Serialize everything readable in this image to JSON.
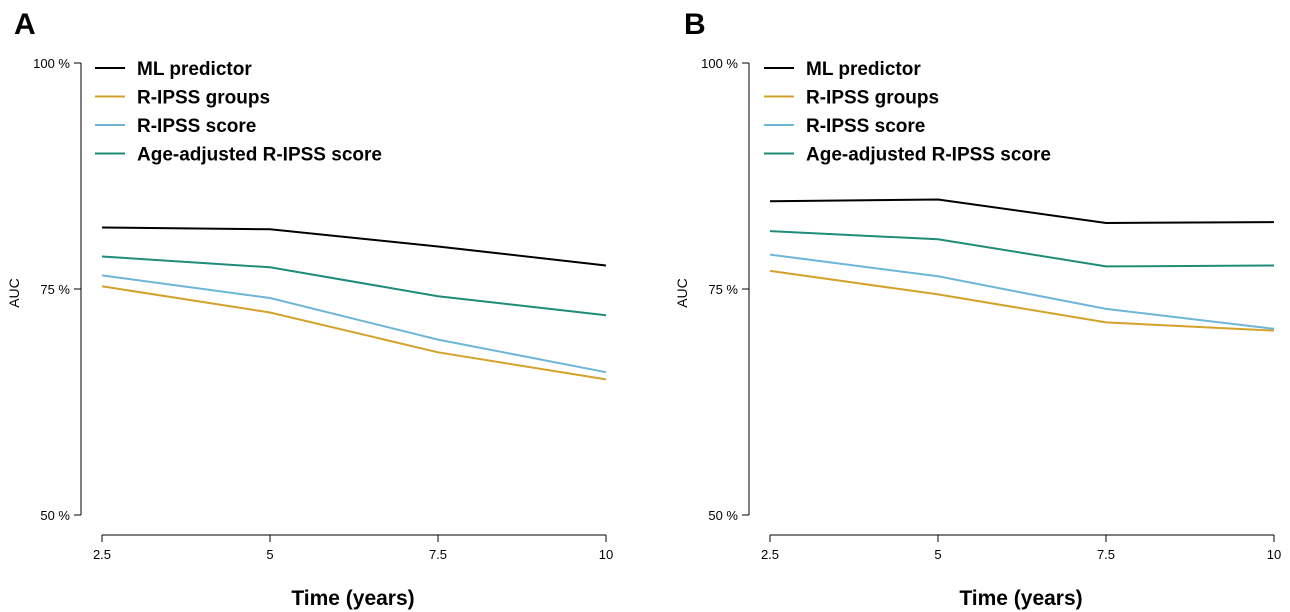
{
  "chart_data": [
    {
      "type": "line",
      "panel_label": "A",
      "xlabel": "Time (years)",
      "ylabel": "AUC",
      "x": [
        2.5,
        5,
        7.5,
        10
      ],
      "x_tick_labels": [
        "2.5",
        "5",
        "7.5",
        "10"
      ],
      "ylim": [
        50,
        100
      ],
      "y_ticks": [
        50,
        75,
        100
      ],
      "y_tick_labels": [
        "50 %",
        "75 %",
        "100 %"
      ],
      "legend_position": "top-left",
      "series": [
        {
          "name": "ML predictor",
          "color": "#000000",
          "values": [
            81.8,
            81.6,
            79.7,
            77.6
          ]
        },
        {
          "name": "R-IPSS groups",
          "color": "#D4A22A",
          "values": [
            75.3,
            72.4,
            68.0,
            65.0
          ]
        },
        {
          "name": "R-IPSS score",
          "color": "#6DB6D8",
          "values": [
            76.5,
            74.0,
            69.4,
            65.8
          ]
        },
        {
          "name": "Age-adjusted R-IPSS score",
          "color": "#1E8C78",
          "values": [
            78.6,
            77.4,
            74.2,
            72.1
          ]
        }
      ]
    },
    {
      "type": "line",
      "panel_label": "B",
      "xlabel": "Time (years)",
      "ylabel": "AUC",
      "x": [
        2.5,
        5,
        7.5,
        10
      ],
      "x_tick_labels": [
        "2.5",
        "5",
        "7.5",
        "10"
      ],
      "ylim": [
        50,
        100
      ],
      "y_ticks": [
        50,
        75,
        100
      ],
      "y_tick_labels": [
        "50 %",
        "75 %",
        "100 %"
      ],
      "legend_position": "top-left",
      "series": [
        {
          "name": "ML predictor",
          "color": "#000000",
          "values": [
            84.7,
            84.9,
            82.3,
            82.4
          ]
        },
        {
          "name": "R-IPSS groups",
          "color": "#D4A22A",
          "values": [
            77.0,
            74.4,
            71.3,
            70.4
          ]
        },
        {
          "name": "R-IPSS score",
          "color": "#6DB6D8",
          "values": [
            78.8,
            76.4,
            72.8,
            70.6
          ]
        },
        {
          "name": "Age-adjusted R-IPSS score",
          "color": "#1E8C78",
          "values": [
            81.4,
            80.5,
            77.5,
            77.6
          ]
        }
      ]
    }
  ]
}
